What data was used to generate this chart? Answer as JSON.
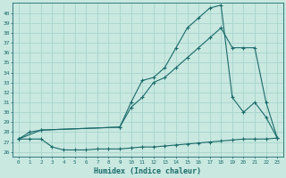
{
  "xlabel": "Humidex (Indice chaleur)",
  "bg_color": "#c8e8e0",
  "line_color": "#1a6b6b",
  "grid_color": "#a8d4cc",
  "xlim": [
    -0.5,
    23.5
  ],
  "ylim": [
    25.5,
    41.0
  ],
  "xticks": [
    0,
    1,
    2,
    3,
    4,
    5,
    6,
    7,
    8,
    9,
    10,
    11,
    12,
    13,
    14,
    15,
    16,
    17,
    18,
    19,
    20,
    21,
    22,
    23
  ],
  "yticks": [
    26,
    27,
    28,
    29,
    30,
    31,
    32,
    33,
    34,
    35,
    36,
    37,
    38,
    39,
    40
  ],
  "line1_x": [
    0,
    1,
    2,
    3,
    4,
    5,
    6,
    7,
    8,
    9,
    10,
    11,
    12,
    13,
    14,
    15,
    16,
    17,
    18,
    19,
    20,
    21,
    22,
    23
  ],
  "line1_y": [
    27.3,
    27.3,
    27.3,
    26.5,
    26.2,
    26.2,
    26.2,
    26.3,
    26.3,
    26.3,
    26.4,
    26.5,
    26.5,
    26.6,
    26.7,
    26.8,
    26.9,
    27.0,
    27.1,
    27.2,
    27.3,
    27.3,
    27.3,
    27.4
  ],
  "line2_x": [
    0,
    2,
    9,
    10,
    11,
    12,
    13,
    14,
    15,
    16,
    17,
    18,
    19,
    20,
    21,
    22,
    23
  ],
  "line2_y": [
    27.3,
    28.2,
    28.5,
    30.5,
    31.5,
    33.0,
    33.5,
    34.5,
    35.5,
    36.5,
    37.5,
    38.5,
    36.5,
    36.5,
    36.5,
    31.0,
    27.4
  ],
  "line3_x": [
    0,
    1,
    2,
    9,
    10,
    11,
    12,
    13,
    14,
    15,
    16,
    17,
    18,
    19,
    20,
    21,
    22,
    23
  ],
  "line3_y": [
    27.3,
    28.0,
    28.2,
    28.5,
    31.0,
    33.2,
    33.5,
    34.5,
    36.5,
    38.5,
    39.5,
    40.5,
    40.8,
    31.5,
    30.0,
    31.0,
    29.5,
    27.4
  ]
}
